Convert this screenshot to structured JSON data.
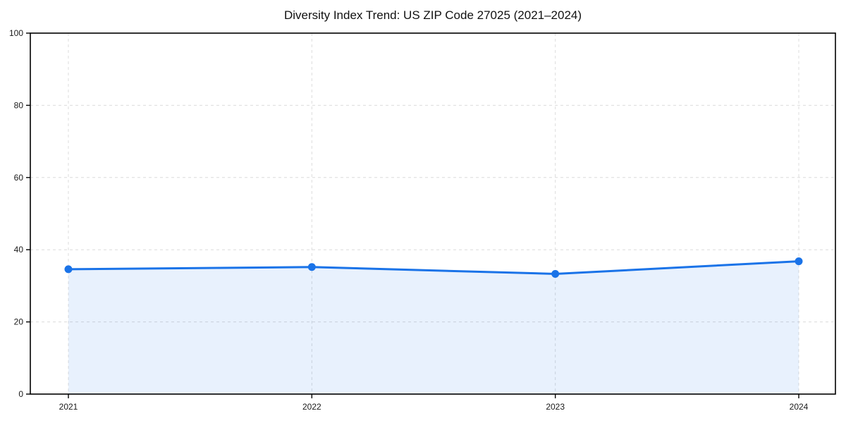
{
  "chart_data": {
    "type": "area",
    "title": "Diversity Index Trend: US ZIP Code 27025 (2021–2024)",
    "x": [
      "2021",
      "2022",
      "2023",
      "2024"
    ],
    "series": [
      {
        "name": "Diversity Index",
        "values": [
          34.6,
          35.2,
          33.3,
          36.8
        ]
      }
    ],
    "xlabel": "",
    "ylabel": "",
    "ylim": [
      0,
      100
    ],
    "yticks": [
      0,
      20,
      40,
      60,
      80,
      100
    ],
    "grid": "dashed-both-axes",
    "legend": "none",
    "colors": {
      "line": "#1a73e8",
      "marker": "#1a73e8",
      "fill": "rgba(26,115,232,0.10)",
      "grid": "#dcdcdc",
      "axis": "#000000",
      "text": "#1a1a1a",
      "background": "#ffffff"
    }
  }
}
